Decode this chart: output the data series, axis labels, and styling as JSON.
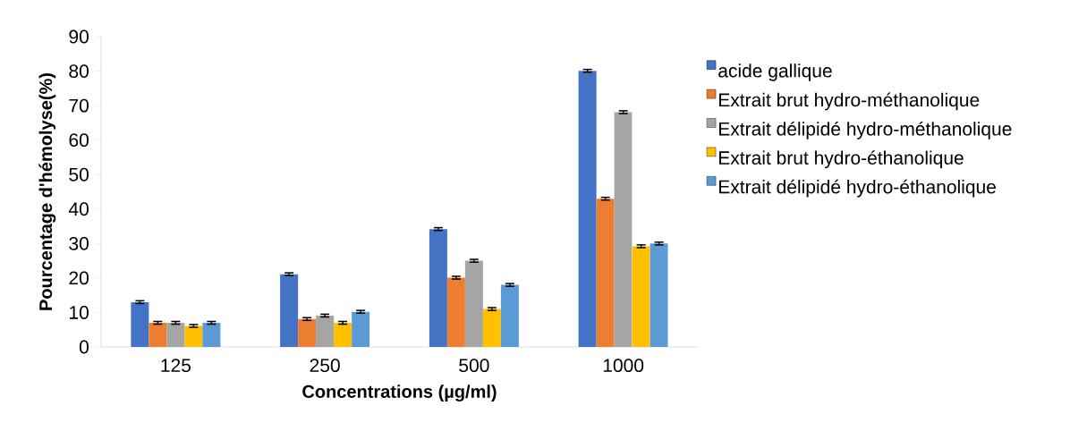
{
  "chart_data": {
    "type": "bar",
    "xlabel": "Concentrations (µg/ml)",
    "ylabel": "Pourcentage d'hémolyse(%)",
    "categories": [
      "125",
      "250",
      "500",
      "1000"
    ],
    "series": [
      {
        "name": "acide gallique",
        "color": "#4472c4",
        "values": [
          13,
          21.1,
          34.2,
          80.1
        ],
        "errors": [
          0.4,
          0.4,
          0.4,
          0.4
        ]
      },
      {
        "name": "Extrait brut hydro-méthanolique",
        "color": "#ed7d31",
        "values": [
          7,
          8.1,
          20.1,
          43
        ],
        "errors": [
          0.4,
          0.4,
          0.4,
          0.4
        ]
      },
      {
        "name": "Extrait délipidé hydro-méthanolique",
        "color": "#a5a5a5",
        "values": [
          7,
          9.1,
          25,
          68.1
        ],
        "errors": [
          0.4,
          0.4,
          0.4,
          0.4
        ]
      },
      {
        "name": "Extrait brut hydro-éthanolique",
        "color": "#ffc000",
        "values": [
          6.1,
          7,
          11,
          29.2
        ],
        "errors": [
          0.4,
          0.4,
          0.4,
          0.4
        ]
      },
      {
        "name": "Extrait délipidé hydro-éthanolique",
        "color": "#5b9bd5",
        "values": [
          7,
          10.2,
          18,
          30
        ],
        "errors": [
          0.4,
          0.4,
          0.4,
          0.4
        ]
      }
    ],
    "ylim": [
      0,
      90
    ],
    "yticks": [
      0,
      10,
      20,
      30,
      40,
      50,
      60,
      70,
      80,
      90
    ],
    "legend": "right"
  }
}
